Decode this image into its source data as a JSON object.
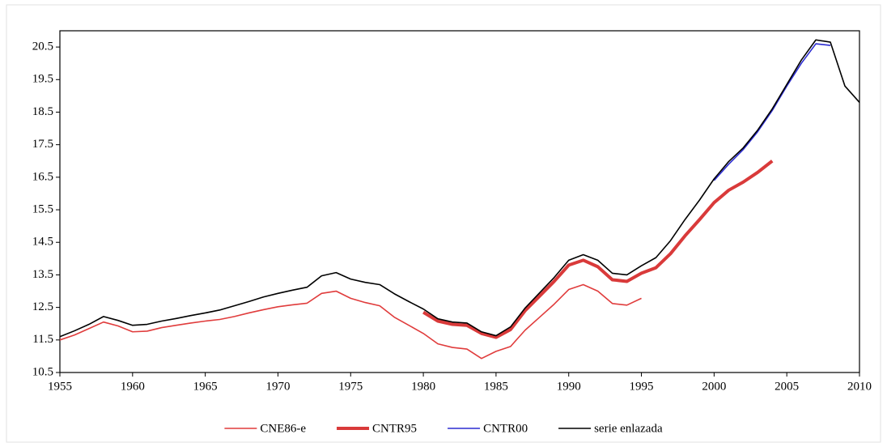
{
  "chart_data": {
    "type": "line",
    "x": [
      1955,
      1956,
      1957,
      1958,
      1959,
      1960,
      1961,
      1962,
      1963,
      1964,
      1965,
      1966,
      1967,
      1968,
      1969,
      1970,
      1971,
      1972,
      1973,
      1974,
      1975,
      1976,
      1977,
      1978,
      1979,
      1980,
      1981,
      1982,
      1983,
      1984,
      1985,
      1986,
      1987,
      1988,
      1989,
      1990,
      1991,
      1992,
      1993,
      1994,
      1995,
      1996,
      1997,
      1998,
      1999,
      2000,
      2001,
      2002,
      2003,
      2004,
      2005,
      2006,
      2007,
      2008,
      2009,
      2010
    ],
    "series": [
      {
        "name": "CNE86-e",
        "color": "#e03c3c",
        "line_width": 1.6,
        "values": [
          11.5,
          11.65,
          11.85,
          12.05,
          11.93,
          11.75,
          11.77,
          11.88,
          11.95,
          12.02,
          12.08,
          12.13,
          12.22,
          12.33,
          12.43,
          12.52,
          12.58,
          12.63,
          12.93,
          13.0,
          12.78,
          12.65,
          12.55,
          12.2,
          11.95,
          11.7,
          11.38,
          11.27,
          11.22,
          10.93,
          11.15,
          11.3,
          11.8,
          12.2,
          12.6,
          13.05,
          13.2,
          13.0,
          12.62,
          12.57,
          12.78,
          null,
          null,
          null,
          null,
          null,
          null,
          null,
          null,
          null,
          null,
          null,
          null,
          null,
          null,
          null
        ]
      },
      {
        "name": "CNTR95",
        "color": "#d93a3a",
        "line_width": 4,
        "values": [
          null,
          null,
          null,
          null,
          null,
          null,
          null,
          null,
          null,
          null,
          null,
          null,
          null,
          null,
          null,
          null,
          null,
          null,
          null,
          null,
          null,
          null,
          null,
          null,
          null,
          12.35,
          12.08,
          11.98,
          11.95,
          11.7,
          11.58,
          11.82,
          12.4,
          12.85,
          13.3,
          13.8,
          13.95,
          13.75,
          13.35,
          13.3,
          13.55,
          13.72,
          14.15,
          14.7,
          15.2,
          15.72,
          16.1,
          16.35,
          16.65,
          17.0,
          null,
          null,
          null,
          null,
          null,
          null
        ]
      },
      {
        "name": "CNTR00",
        "color": "#2b2bd0",
        "line_width": 1.6,
        "values": [
          null,
          null,
          null,
          null,
          null,
          null,
          null,
          null,
          null,
          null,
          null,
          null,
          null,
          null,
          null,
          null,
          null,
          null,
          null,
          null,
          null,
          null,
          null,
          null,
          null,
          null,
          null,
          null,
          null,
          null,
          null,
          null,
          null,
          null,
          null,
          null,
          null,
          null,
          null,
          null,
          null,
          null,
          null,
          null,
          null,
          16.4,
          16.9,
          17.35,
          17.9,
          18.55,
          19.3,
          20.0,
          20.6,
          20.55,
          null,
          null
        ]
      },
      {
        "name": "serie enlazada",
        "color": "#000000",
        "line_width": 1.6,
        "values": [
          11.6,
          11.78,
          11.98,
          12.22,
          12.1,
          11.95,
          11.98,
          12.08,
          12.16,
          12.25,
          12.33,
          12.42,
          12.55,
          12.68,
          12.82,
          12.93,
          13.03,
          13.12,
          13.47,
          13.57,
          13.37,
          13.27,
          13.2,
          12.92,
          12.68,
          12.45,
          12.15,
          12.05,
          12.02,
          11.75,
          11.63,
          11.9,
          12.48,
          12.95,
          13.42,
          13.95,
          14.12,
          13.95,
          13.55,
          13.5,
          13.78,
          14.03,
          14.55,
          15.2,
          15.8,
          16.45,
          16.98,
          17.4,
          17.95,
          18.6,
          19.35,
          20.1,
          20.72,
          20.65,
          19.3,
          18.8
        ]
      }
    ],
    "xlim": [
      1955,
      2010
    ],
    "xticks": [
      1955,
      1960,
      1965,
      1970,
      1975,
      1980,
      1985,
      1990,
      1995,
      2000,
      2005,
      2010
    ],
    "ylim": [
      10.5,
      21
    ],
    "yticks": [
      10.5,
      11.5,
      12.5,
      13.5,
      14.5,
      15.5,
      16.5,
      17.5,
      18.5,
      19.5,
      20.5
    ],
    "legend": "bottom"
  }
}
